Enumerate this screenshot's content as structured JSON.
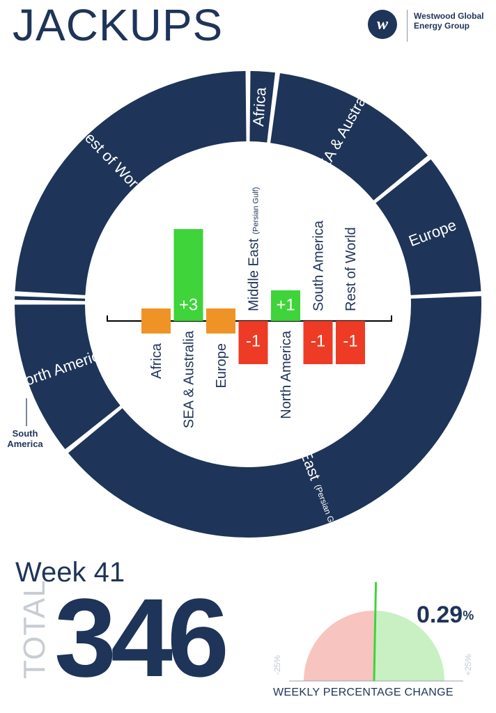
{
  "title": "JACKUPS",
  "logo": {
    "mark": "w",
    "text": "Westwood Global Energy Group",
    "icon": "westwood-w-logo"
  },
  "colors": {
    "navy": "#1e3458",
    "increase": "#3ed43a",
    "decrease": "#ee3b26",
    "no_change": "#ef9326",
    "gauge_negative": "#f8c4bf",
    "gauge_positive": "#c8f0c2"
  },
  "chart_data": [
    {
      "type": "pie",
      "style": "donut",
      "slices": [
        {
          "label": "Africa",
          "value": 7
        },
        {
          "label": "SEA & Australia",
          "value": 42
        },
        {
          "label": "Europe",
          "value": 35
        },
        {
          "label": "Middle East",
          "sublabel": "(Persian Gulf & Red Sea)",
          "value": 138
        },
        {
          "label": "North America",
          "value": 38
        },
        {
          "label": "South America",
          "value": 2
        },
        {
          "label": "Rest of World",
          "value": 84
        }
      ]
    },
    {
      "type": "bar",
      "title": "",
      "categories": [
        "Africa",
        "SEA & Australia",
        "Europe",
        "Middle East",
        "North America",
        "South America",
        "Rest of World"
      ],
      "category_sublabels": [
        "",
        "",
        "",
        "(Persian Gulf)",
        "",
        "",
        ""
      ],
      "values": [
        0,
        3,
        0,
        -1,
        1,
        -1,
        -1
      ],
      "value_labels": [
        "",
        "+3",
        "",
        "-1",
        "+1",
        "-1",
        "-1"
      ],
      "ylim": [
        -2,
        4
      ]
    },
    {
      "type": "gauge",
      "title": "WEEKLY PERCENTAGE CHANGE",
      "value": 0.29,
      "range": [
        -25,
        25
      ],
      "tick_labels": [
        "-25%",
        "+25%"
      ]
    }
  ],
  "week": {
    "label": "Week 41"
  },
  "total": {
    "word": "TOTAL",
    "value": "346"
  },
  "weekly_change": {
    "value": "0.29",
    "unit": "%"
  },
  "labels": {
    "south_america_callout": "South America"
  }
}
